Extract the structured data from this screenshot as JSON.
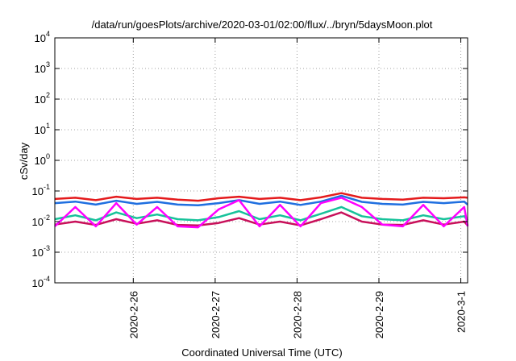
{
  "chart_data": {
    "type": "line",
    "title": "/data/run/goesPlots/archive/2020-03-01/02:00/flux/../bryn/5daysMoon.plot",
    "xlabel": "Coordinated Universal Time (UTC)",
    "ylabel": "cSv/day",
    "yscale": "log",
    "ylim": [
      0.0001,
      10000
    ],
    "y_ticks": [
      {
        "value": 0.0001,
        "base": "10",
        "exp": "-4"
      },
      {
        "value": 0.001,
        "base": "10",
        "exp": "-3"
      },
      {
        "value": 0.01,
        "base": "10",
        "exp": "-2"
      },
      {
        "value": 0.1,
        "base": "10",
        "exp": "-1"
      },
      {
        "value": 1,
        "base": "10",
        "exp": "0"
      },
      {
        "value": 10,
        "base": "10",
        "exp": "1"
      },
      {
        "value": 100,
        "base": "10",
        "exp": "2"
      },
      {
        "value": 1000,
        "base": "10",
        "exp": "3"
      },
      {
        "value": 10000,
        "base": "10",
        "exp": "4"
      }
    ],
    "xlim": [
      "2020-02-25 01:00",
      "2020-03-01 02:00"
    ],
    "x_ticks": [
      "2020-2-26",
      "2020-2-27",
      "2020-2-28",
      "2020-2-29",
      "2020-3-1"
    ],
    "grid": true,
    "series": [
      {
        "color": "#e41a1c",
        "x": [
          "2020-02-25 01:00",
          "2020-02-25 07:00",
          "2020-02-25 13:00",
          "2020-02-25 19:00",
          "2020-02-26 01:00",
          "2020-02-26 07:00",
          "2020-02-26 13:00",
          "2020-02-26 19:00",
          "2020-02-27 01:00",
          "2020-02-27 07:00",
          "2020-02-27 13:00",
          "2020-02-27 19:00",
          "2020-02-28 01:00",
          "2020-02-28 07:00",
          "2020-02-28 13:00",
          "2020-02-28 19:00",
          "2020-02-29 01:00",
          "2020-02-29 07:00",
          "2020-02-29 13:00",
          "2020-02-29 19:00",
          "2020-03-01 01:00",
          "2020-03-01 02:00"
        ],
        "values": [
          0.055,
          0.06,
          0.05,
          0.065,
          0.055,
          0.06,
          0.052,
          0.048,
          0.058,
          0.065,
          0.055,
          0.06,
          0.05,
          0.062,
          0.085,
          0.06,
          0.055,
          0.052,
          0.06,
          0.058,
          0.062,
          0.06
        ]
      },
      {
        "color": "#1f6fe0",
        "x": [
          "2020-02-25 01:00",
          "2020-02-25 07:00",
          "2020-02-25 13:00",
          "2020-02-25 19:00",
          "2020-02-26 01:00",
          "2020-02-26 07:00",
          "2020-02-26 13:00",
          "2020-02-26 19:00",
          "2020-02-27 01:00",
          "2020-02-27 07:00",
          "2020-02-27 13:00",
          "2020-02-27 19:00",
          "2020-02-28 01:00",
          "2020-02-28 07:00",
          "2020-02-28 13:00",
          "2020-02-28 19:00",
          "2020-02-29 01:00",
          "2020-02-29 07:00",
          "2020-02-29 13:00",
          "2020-02-29 19:00",
          "2020-03-01 01:00",
          "2020-03-01 02:00"
        ],
        "values": [
          0.04,
          0.045,
          0.036,
          0.048,
          0.038,
          0.044,
          0.036,
          0.034,
          0.04,
          0.05,
          0.038,
          0.045,
          0.035,
          0.045,
          0.07,
          0.044,
          0.038,
          0.036,
          0.044,
          0.04,
          0.045,
          0.036
        ]
      },
      {
        "color": "#17c29a",
        "x": [
          "2020-02-25 01:00",
          "2020-02-25 07:00",
          "2020-02-25 13:00",
          "2020-02-25 19:00",
          "2020-02-26 01:00",
          "2020-02-26 07:00",
          "2020-02-26 13:00",
          "2020-02-26 19:00",
          "2020-02-27 01:00",
          "2020-02-27 07:00",
          "2020-02-27 13:00",
          "2020-02-27 19:00",
          "2020-02-28 01:00",
          "2020-02-28 07:00",
          "2020-02-28 13:00",
          "2020-02-28 19:00",
          "2020-02-29 01:00",
          "2020-02-29 07:00",
          "2020-02-29 13:00",
          "2020-02-29 19:00",
          "2020-03-01 01:00",
          "2020-03-01 02:00"
        ],
        "values": [
          0.012,
          0.016,
          0.011,
          0.02,
          0.013,
          0.017,
          0.012,
          0.011,
          0.014,
          0.022,
          0.012,
          0.016,
          0.011,
          0.018,
          0.03,
          0.015,
          0.012,
          0.011,
          0.016,
          0.012,
          0.015,
          0.011
        ]
      },
      {
        "color": "#c8105a",
        "x": [
          "2020-02-25 01:00",
          "2020-02-25 07:00",
          "2020-02-25 13:00",
          "2020-02-25 19:00",
          "2020-02-26 01:00",
          "2020-02-26 07:00",
          "2020-02-26 13:00",
          "2020-02-26 19:00",
          "2020-02-27 01:00",
          "2020-02-27 07:00",
          "2020-02-27 13:00",
          "2020-02-27 19:00",
          "2020-02-28 01:00",
          "2020-02-28 07:00",
          "2020-02-28 13:00",
          "2020-02-28 19:00",
          "2020-02-29 01:00",
          "2020-02-29 07:00",
          "2020-02-29 13:00",
          "2020-02-29 19:00",
          "2020-03-01 01:00",
          "2020-03-01 02:00"
        ],
        "values": [
          0.008,
          0.01,
          0.0078,
          0.012,
          0.0085,
          0.011,
          0.0078,
          0.0075,
          0.009,
          0.013,
          0.008,
          0.01,
          0.0075,
          0.012,
          0.02,
          0.01,
          0.008,
          0.0078,
          0.011,
          0.008,
          0.01,
          0.0075
        ]
      },
      {
        "color": "#ff00ff",
        "x": [
          "2020-02-25 01:00",
          "2020-02-25 07:00",
          "2020-02-25 13:00",
          "2020-02-25 19:00",
          "2020-02-26 01:00",
          "2020-02-26 07:00",
          "2020-02-26 13:00",
          "2020-02-26 19:00",
          "2020-02-27 01:00",
          "2020-02-27 07:00",
          "2020-02-27 13:00",
          "2020-02-27 19:00",
          "2020-02-28 01:00",
          "2020-02-28 07:00",
          "2020-02-28 13:00",
          "2020-02-28 19:00",
          "2020-02-29 01:00",
          "2020-02-29 07:00",
          "2020-02-29 13:00",
          "2020-02-29 19:00",
          "2020-03-01 01:00",
          "2020-03-01 02:00"
        ],
        "values": [
          0.007,
          0.03,
          0.007,
          0.04,
          0.008,
          0.03,
          0.007,
          0.0065,
          0.025,
          0.05,
          0.007,
          0.035,
          0.007,
          0.04,
          0.06,
          0.03,
          0.008,
          0.007,
          0.035,
          0.007,
          0.03,
          0.007
        ]
      }
    ]
  }
}
